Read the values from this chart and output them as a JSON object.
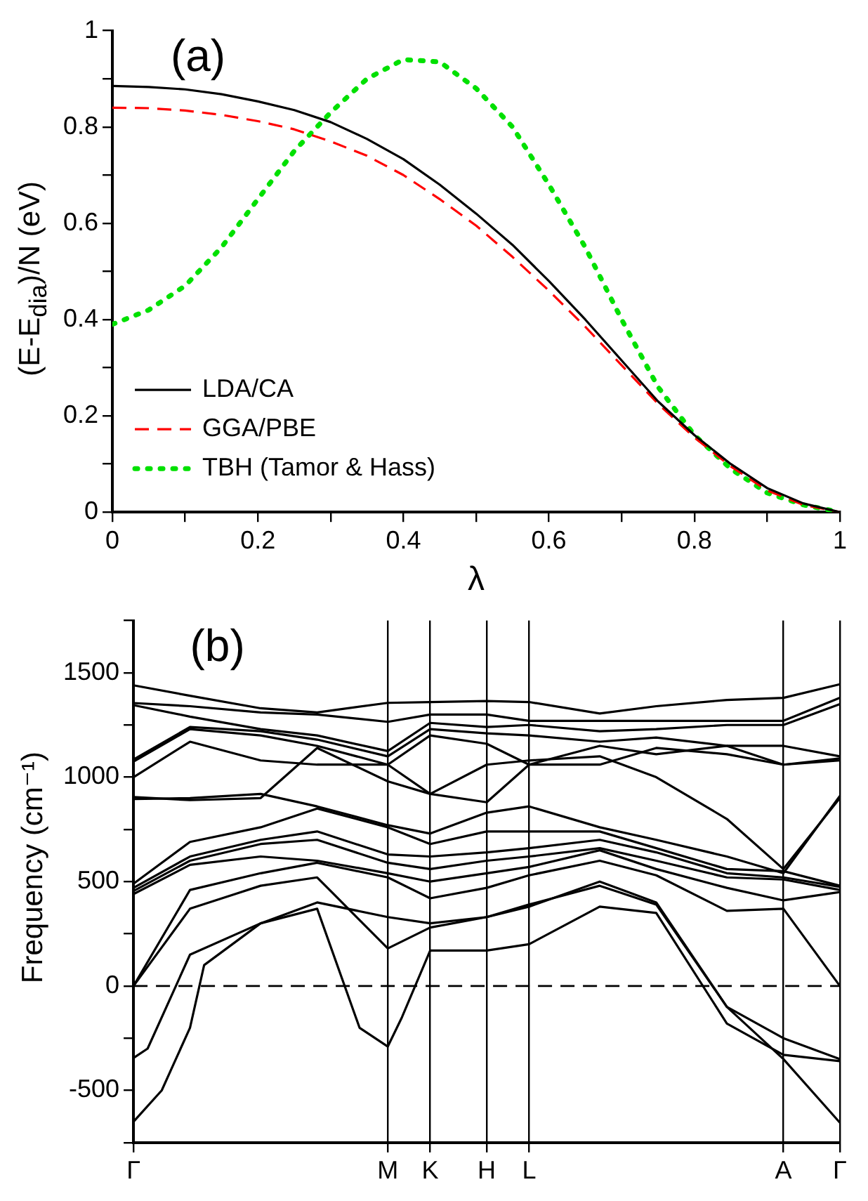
{
  "chart_data": [
    {
      "type": "line",
      "xlabel": "λ",
      "ylabel": "(E-E$_{dia}$)/N (eV)",
      "annotations": [
        "(a)"
      ],
      "legend": "bottom left",
      "marker": "none",
      "grid": false,
      "x": [
        0,
        0.05,
        0.1,
        0.15,
        0.2,
        0.25,
        0.3,
        0.35,
        0.4,
        0.45,
        0.5,
        0.55,
        0.6,
        0.65,
        0.7,
        0.75,
        0.8,
        0.85,
        0.9,
        0.95,
        1
      ],
      "xlim": [
        0,
        1
      ],
      "xticks": [
        0,
        {
          "value": 0.1,
          "label": null
        },
        0.2,
        {
          "value": 0.3,
          "label": null
        },
        0.4,
        {
          "value": 0.5,
          "label": null
        },
        0.6,
        {
          "value": 0.7,
          "label": null
        },
        0.8,
        {
          "value": 0.9,
          "label": null
        },
        1
      ],
      "ylim": [
        0,
        1
      ],
      "yticks": [
        0,
        {
          "value": 0.1,
          "label": null
        },
        0.2,
        {
          "value": 0.3,
          "label": null
        },
        0.4,
        {
          "value": 0.5,
          "label": null
        },
        0.6,
        {
          "value": 0.7,
          "label": null
        },
        0.8,
        {
          "value": 0.9,
          "label": null
        },
        1
      ],
      "series": [
        {
          "name": "LDA/CA",
          "color": "#000000",
          "line_style": "solid",
          "values": [
            0.885,
            0.883,
            0.878,
            0.868,
            0.853,
            0.835,
            0.81,
            0.775,
            0.733,
            0.68,
            0.62,
            0.555,
            0.48,
            0.4,
            0.315,
            0.23,
            0.16,
            0.1,
            0.05,
            0.018,
            0
          ]
        },
        {
          "name": "GGA/PBE",
          "color": "#ff0000",
          "line_style": "dashed",
          "values": [
            0.84,
            0.839,
            0.834,
            0.825,
            0.812,
            0.795,
            0.77,
            0.74,
            0.7,
            0.65,
            0.595,
            0.53,
            0.46,
            0.385,
            0.305,
            0.225,
            0.155,
            0.095,
            0.045,
            0.015,
            0
          ]
        },
        {
          "name": "TBH (Tamor & Hass)",
          "color": "#00e000",
          "line_style": "dotted",
          "values": [
            0.39,
            0.42,
            0.47,
            0.55,
            0.65,
            0.75,
            0.83,
            0.9,
            0.94,
            0.935,
            0.88,
            0.8,
            0.68,
            0.55,
            0.4,
            0.26,
            0.16,
            0.09,
            0.04,
            0.015,
            0
          ]
        }
      ]
    },
    {
      "type": "line",
      "ylabel": "Frequency (cm⁻¹)",
      "annotations": [
        "(b)"
      ],
      "legend": false,
      "marker": "none",
      "grid": "x",
      "line_style": "solid",
      "categories": [
        "Γ",
        null,
        null,
        null,
        null,
        null,
        null,
        null,
        null,
        null,
        null,
        null,
        null,
        null,
        null,
        null,
        null,
        null,
        "M",
        null,
        null,
        "K",
        null,
        null,
        null,
        "H",
        null,
        null,
        "L",
        null,
        null,
        null,
        null,
        null,
        null,
        null,
        null,
        null,
        null,
        null,
        null,
        null,
        null,
        null,
        null,
        null,
        "A",
        null,
        null,
        null,
        "Γ"
      ],
      "ylim": [
        -750,
        1750
      ],
      "yticks": [
        {
          "value": -750,
          "label": null
        },
        -500,
        {
          "value": -250,
          "label": null
        },
        0,
        {
          "value": 250,
          "label": null
        },
        500,
        {
          "value": 750,
          "label": null
        },
        1000,
        {
          "value": 1250,
          "label": null
        },
        1500,
        {
          "value": 1750,
          "label": null
        }
      ],
      "ref_lines": [
        {
          "axis": "y",
          "value": 0,
          "color": "#000000",
          "line_style": "dashed"
        }
      ],
      "series": [
        {
          "color": "#000000",
          "values": [
            1440,
            null,
            null,
            null,
            1390,
            null,
            null,
            null,
            null,
            1330,
            null,
            null,
            null,
            1310,
            null,
            null,
            null,
            null,
            1356,
            null,
            null,
            1360,
            null,
            null,
            null,
            1365,
            null,
            null,
            1360,
            null,
            null,
            null,
            null,
            1305,
            null,
            null,
            null,
            1340,
            null,
            null,
            null,
            null,
            1370,
            null,
            null,
            null,
            1380,
            null,
            null,
            null,
            1445
          ]
        },
        {
          "color": "#000000",
          "values": [
            1355,
            null,
            null,
            null,
            1340,
            null,
            null,
            null,
            null,
            1310,
            null,
            null,
            null,
            1300,
            null,
            null,
            null,
            null,
            1265,
            null,
            null,
            1300,
            null,
            null,
            null,
            1300,
            null,
            null,
            1270,
            null,
            null,
            null,
            null,
            1270,
            null,
            null,
            null,
            1270,
            null,
            null,
            null,
            null,
            1270,
            null,
            null,
            null,
            1270,
            null,
            null,
            null,
            1380
          ]
        },
        {
          "color": "#000000",
          "values": [
            1345,
            null,
            null,
            null,
            1290,
            null,
            null,
            null,
            null,
            1230,
            null,
            null,
            null,
            1200,
            null,
            null,
            null,
            null,
            1125,
            null,
            null,
            1260,
            null,
            null,
            null,
            1240,
            null,
            null,
            1250,
            null,
            null,
            null,
            null,
            1220,
            null,
            null,
            null,
            1230,
            null,
            null,
            null,
            null,
            1250,
            null,
            null,
            null,
            1250,
            null,
            null,
            null,
            1350
          ]
        },
        {
          "color": "#000000",
          "values": [
            1085,
            null,
            null,
            null,
            1240,
            null,
            null,
            null,
            null,
            1220,
            null,
            null,
            null,
            1180,
            null,
            null,
            null,
            null,
            1100,
            null,
            null,
            1230,
            null,
            null,
            null,
            1210,
            null,
            null,
            1200,
            null,
            null,
            null,
            null,
            1170,
            null,
            null,
            null,
            1190,
            null,
            null,
            null,
            null,
            1150,
            null,
            null,
            null,
            1060,
            null,
            null,
            null,
            1080
          ]
        },
        {
          "color": "#000000",
          "values": [
            1075,
            null,
            null,
            null,
            1230,
            null,
            null,
            null,
            null,
            1200,
            null,
            null,
            null,
            1150,
            null,
            null,
            null,
            null,
            1060,
            null,
            null,
            1200,
            null,
            null,
            null,
            1160,
            null,
            null,
            1060,
            null,
            null,
            null,
            null,
            1150,
            null,
            null,
            null,
            1110,
            null,
            null,
            null,
            null,
            1150,
            null,
            null,
            null,
            1150,
            null,
            null,
            null,
            1100
          ]
        },
        {
          "color": "#000000",
          "values": [
            1000,
            null,
            null,
            null,
            1170,
            null,
            null,
            null,
            null,
            1080,
            null,
            null,
            null,
            1060,
            null,
            null,
            null,
            null,
            1060,
            null,
            null,
            920,
            null,
            null,
            null,
            880,
            null,
            null,
            1060,
            null,
            null,
            null,
            null,
            1060,
            null,
            null,
            null,
            1140,
            null,
            null,
            null,
            null,
            1110,
            null,
            null,
            null,
            1060,
            null,
            null,
            null,
            1090
          ]
        },
        {
          "color": "#000000",
          "values": [
            905,
            null,
            null,
            null,
            890,
            null,
            null,
            null,
            null,
            900,
            null,
            null,
            null,
            1140,
            null,
            null,
            null,
            null,
            980,
            null,
            null,
            920,
            null,
            null,
            null,
            1060,
            null,
            null,
            1080,
            null,
            null,
            null,
            null,
            1100,
            null,
            null,
            null,
            1000,
            null,
            null,
            null,
            null,
            800,
            null,
            null,
            null,
            560,
            null,
            null,
            null,
            900
          ]
        },
        {
          "color": "#000000",
          "values": [
            895,
            null,
            null,
            null,
            900,
            null,
            null,
            null,
            null,
            920,
            null,
            null,
            null,
            860,
            null,
            null,
            null,
            null,
            770,
            null,
            null,
            730,
            null,
            null,
            null,
            830,
            null,
            null,
            860,
            null,
            null,
            null,
            null,
            760,
            null,
            null,
            null,
            700,
            null,
            null,
            null,
            null,
            620,
            null,
            null,
            null,
            540,
            null,
            null,
            null,
            910
          ]
        },
        {
          "color": "#000000",
          "values": [
            490,
            null,
            null,
            null,
            690,
            null,
            null,
            null,
            null,
            760,
            null,
            null,
            null,
            850,
            null,
            null,
            null,
            null,
            760,
            null,
            null,
            680,
            null,
            null,
            null,
            740,
            null,
            null,
            740,
            null,
            null,
            null,
            null,
            740,
            null,
            null,
            null,
            660,
            null,
            null,
            null,
            null,
            560,
            null,
            null,
            null,
            550,
            null,
            null,
            null,
            480
          ]
        },
        {
          "color": "#000000",
          "values": [
            470,
            null,
            null,
            null,
            620,
            null,
            null,
            null,
            null,
            700,
            null,
            null,
            null,
            740,
            null,
            null,
            null,
            null,
            630,
            null,
            null,
            620,
            null,
            null,
            null,
            640,
            null,
            null,
            660,
            null,
            null,
            null,
            null,
            700,
            null,
            null,
            null,
            640,
            null,
            null,
            null,
            null,
            540,
            null,
            null,
            null,
            520,
            null,
            null,
            null,
            475
          ]
        },
        {
          "color": "#000000",
          "values": [
            455,
            null,
            null,
            null,
            600,
            null,
            null,
            null,
            null,
            680,
            null,
            null,
            null,
            700,
            null,
            null,
            null,
            null,
            590,
            null,
            null,
            560,
            null,
            null,
            null,
            600,
            null,
            null,
            620,
            null,
            null,
            null,
            null,
            660,
            null,
            null,
            null,
            600,
            null,
            null,
            null,
            null,
            520,
            null,
            null,
            null,
            510,
            null,
            null,
            null,
            460
          ]
        },
        {
          "color": "#000000",
          "values": [
            440,
            null,
            null,
            null,
            580,
            null,
            null,
            null,
            null,
            620,
            null,
            null,
            null,
            600,
            null,
            null,
            null,
            null,
            540,
            null,
            null,
            500,
            null,
            null,
            null,
            540,
            null,
            null,
            570,
            null,
            null,
            null,
            null,
            650,
            null,
            null,
            null,
            560,
            null,
            null,
            null,
            null,
            470,
            null,
            null,
            null,
            410,
            null,
            null,
            null,
            450
          ]
        },
        {
          "color": "#000000",
          "values": [
            0,
            null,
            null,
            null,
            460,
            null,
            null,
            null,
            null,
            540,
            null,
            null,
            null,
            590,
            null,
            null,
            null,
            null,
            520,
            null,
            null,
            420,
            null,
            null,
            null,
            470,
            null,
            null,
            530,
            null,
            null,
            null,
            null,
            600,
            null,
            null,
            null,
            530,
            null,
            null,
            null,
            null,
            360,
            null,
            null,
            null,
            370,
            null,
            null,
            null,
            0
          ]
        },
        {
          "color": "#000000",
          "values": [
            0,
            null,
            null,
            null,
            370,
            null,
            null,
            null,
            null,
            480,
            null,
            null,
            null,
            520,
            null,
            null,
            null,
            null,
            180,
            null,
            null,
            280,
            null,
            null,
            null,
            330,
            null,
            null,
            380,
            null,
            null,
            null,
            null,
            500,
            null,
            null,
            null,
            400,
            null,
            null,
            null,
            null,
            -100,
            null,
            null,
            null,
            -250,
            null,
            null,
            null,
            -350
          ]
        },
        {
          "color": "#000000",
          "values": [
            -345,
            -300,
            null,
            null,
            150,
            null,
            null,
            null,
            null,
            300,
            null,
            null,
            null,
            370,
            null,
            null,
            -200,
            null,
            -290,
            -150,
            null,
            170,
            null,
            null,
            null,
            170,
            null,
            null,
            200,
            null,
            null,
            null,
            null,
            380,
            null,
            null,
            null,
            350,
            null,
            null,
            null,
            null,
            -180,
            null,
            null,
            null,
            -330,
            null,
            null,
            null,
            -360
          ]
        },
        {
          "color": "#000000",
          "values": [
            -650,
            null,
            -500,
            null,
            -200,
            100,
            null,
            null,
            null,
            300,
            null,
            null,
            null,
            400,
            null,
            null,
            null,
            null,
            330,
            null,
            null,
            300,
            null,
            null,
            null,
            330,
            null,
            null,
            390,
            null,
            null,
            null,
            null,
            480,
            null,
            null,
            null,
            390,
            null,
            null,
            null,
            null,
            -100,
            null,
            null,
            null,
            -350,
            null,
            null,
            null,
            -655
          ]
        }
      ]
    }
  ]
}
